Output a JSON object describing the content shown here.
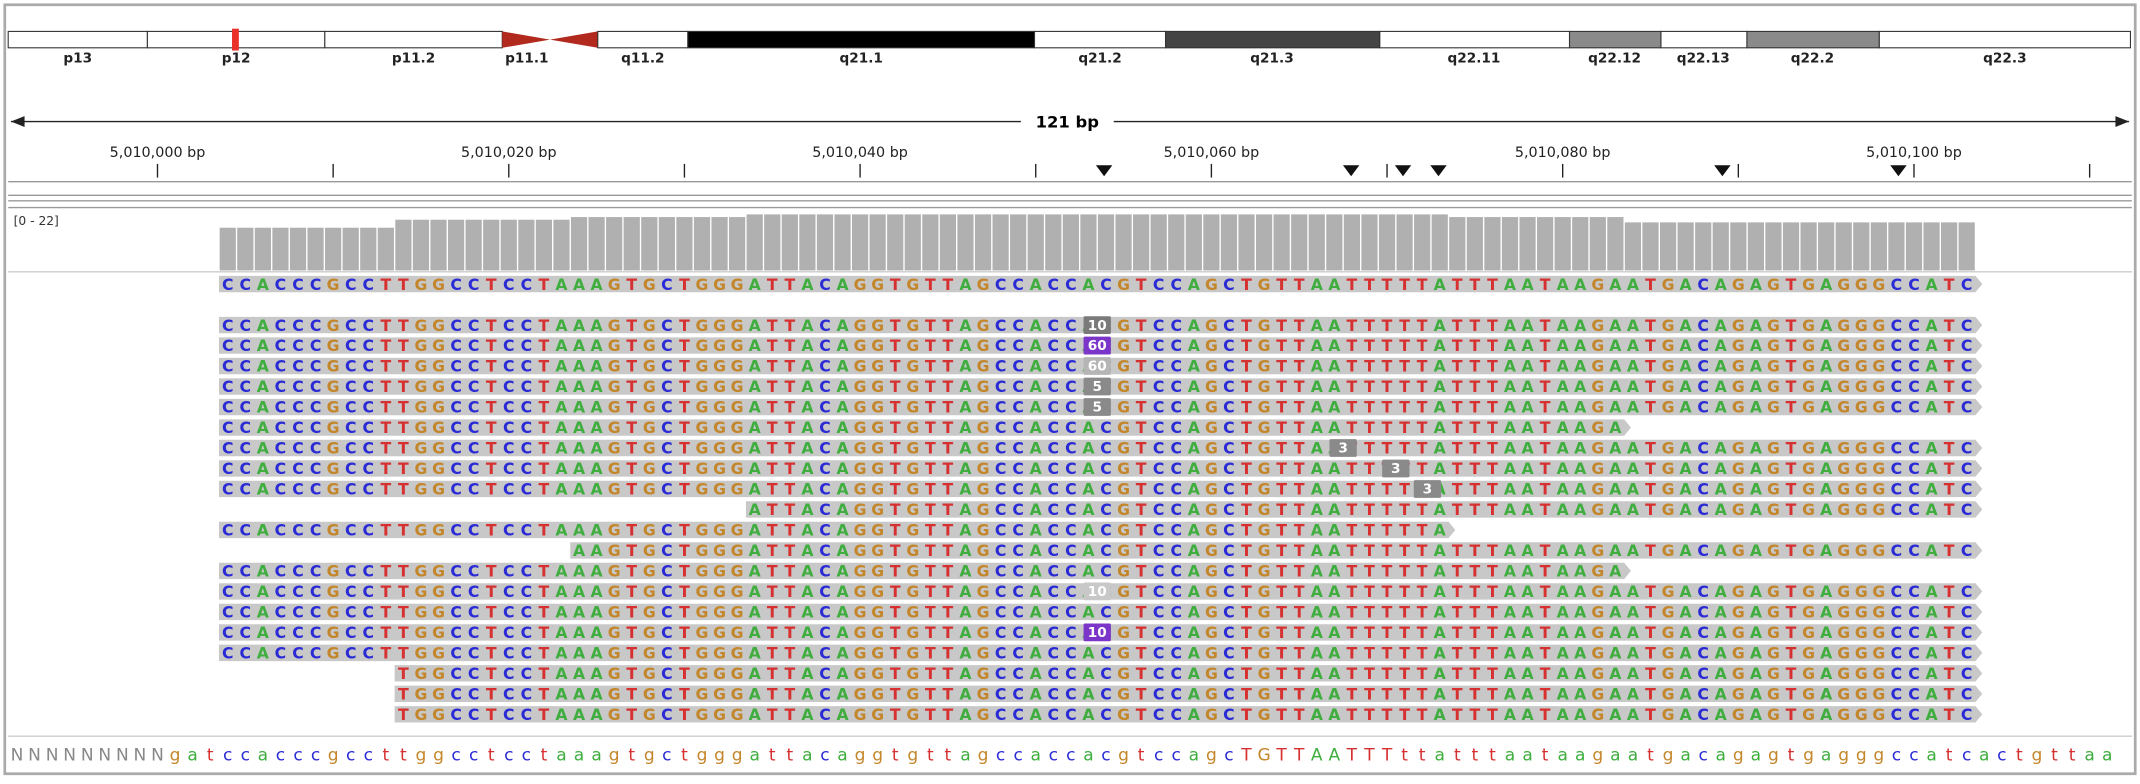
{
  "ideogram": {
    "bands": [
      "p13",
      "p12",
      "p11.2",
      "p11.1",
      "q11.2",
      "q21.1",
      "q21.2",
      "q21.3",
      "q22.11",
      "q22.12",
      "q22.13",
      "q22.2",
      "q22.3"
    ]
  },
  "ruler": {
    "span": "121 bp",
    "tick_labels": [
      "5,010,000 bp",
      "5,010,020 bp",
      "5,010,040 bp",
      "5,010,060 bp",
      "5,010,080 bp",
      "5,010,100 bp"
    ]
  },
  "coverage": {
    "range_label": "[0 - 22]",
    "ylim": [
      0,
      22
    ]
  },
  "reads": [
    {
      "sequence": "CCACCCGCCTTGGCCTCCTAAAGTGCTGGGATTACAGGTGTTAGCCACCACGTCCAGCTGTTAATTTTTATTTAATAAGAATGACAGAGTGAGGGCCATC"
    },
    {
      "sequence": "CCACCCGCCTTGGCCTCCTAAAGTGCTGGGATTACAGGTGTTAGCCACCACGTCCAGCTGTTAATTTTTATTTAATAAGAATGACAGAGTGAGGGCCATC",
      "insertion": "10",
      "insertion_color": "#7a7a7a"
    },
    {
      "sequence": "CCACCCGCCTTGGCCTCCTAAAGTGCTGGGATTACAGGTGTTAGCCACCACGTCCAGCTGTTAATTTTTATTTAATAAGAATGACAGAGTGAGGGCCATC",
      "insertion": "60",
      "insertion_color": "#7b35c8"
    },
    {
      "sequence": "CCACCCGCCTTGGCCTCCTAAAGTGCTGGGATTACAGGTGTTAGCCACCACGTCCAGCTGTTAATTTTTATTTAATAAGAATGACAGAGTGAGGGCCATC",
      "insertion": "60",
      "insertion_color": "#b5b5b5"
    },
    {
      "sequence": "CCACCCGCCTTGGCCTCCTAAAGTGCTGGGATTACAGGTGTTAGCCACCACGTCCAGCTGTTAATTTTTATTTAATAAGAATGACAGAGTGAGGGCCATC",
      "insertion": "5",
      "insertion_color": "#8a8a8a"
    },
    {
      "sequence": "CCACCCGCCTTGGCCTCCTAAAGTGCTGGGATTACAGGTGTTAGCCACCACGTCCAGCTGTTAATTTTTATTTAATAAGAATGACAGAGTGAGGGCCATC",
      "insertion": "5",
      "insertion_color": "#8a8a8a"
    },
    {
      "sequence": "CCACCCGCCTTGGCCTCCTAAAGTGCTGGGATTACAGGTGTTAGCCACCACGTCCAGCTGTTAATTTTTATTTAATAAGA"
    },
    {
      "sequence": "CCACCCGCCTTGGCCTCCTAAAGTGCTGGGATTACAGGTGTTAGCCACCACGTCCAGCTGTTAATTTTTATTTAATAAGAATGACAGAGTGAGGGCCATC",
      "insertion": "3",
      "insertion_color": "#8a8a8a"
    },
    {
      "sequence": "CCACCCGCCTTGGCCTCCTAAAGTGCTGGGATTACAGGTGTTAGCCACCACGTCCAGCTGTTAATTTTTATTTAATAAGAATGACAGAGTGAGGGCCATC",
      "insertion": "3",
      "insertion_color": "#8a8a8a"
    },
    {
      "sequence": "CCACCCGCCTTGGCCTCCTAAAGTGCTGGGATTACAGGTGTTAGCCACCACGTCCAGCTGTTAATTTTTATTTAATAAGAATGACAGAGTGAGGGCCATC",
      "insertion": "3",
      "insertion_color": "#8a8a8a"
    },
    {
      "sequence": "ATTACAGGTGTTAGCCACCACGTCCAGCTGTTAATTTTTATTTAATAAGAATGACAGAGTGAGGGCCATC"
    },
    {
      "sequence": "CCACCCGCCTTGGCCTCCTAAAGTGCTGGGATTACAGGTGTTAGCCACCACGTCCAGCTGTTAATTTTTA"
    },
    {
      "sequence": "AAGTGCTGGGATTACAGGTGTTAGCCACCACGTCCAGCTGTTAATTTTTATTTAATAAGAATGACAGAGTGAGGGCCATC"
    },
    {
      "sequence": "CCACCCGCCTTGGCCTCCTAAAGTGCTGGGATTACAGGTGTTAGCCACCACGTCCAGCTGTTAATTTTTATTTAATAAGA"
    },
    {
      "sequence": "CCACCCGCCTTGGCCTCCTAAAGTGCTGGGATTACAGGTGTTAGCCACCACGTCCAGCTGTTAATTTTTATTTAATAAGAATGACAGAGTGAGGGCCATC",
      "insertion": "10",
      "insertion_color": "#c8c8c8"
    },
    {
      "sequence": "CCACCCGCCTTGGCCTCCTAAAGTGCTGGGATTACAGGTGTTAGCCACCACGTCCAGCTGTTAATTTTTATTTAATAAGAATGACAGAGTGAGGGCCATC"
    },
    {
      "sequence": "CCACCCGCCTTGGCCTCCTAAAGTGCTGGGATTACAGGTGTTAGCCACCACGTCCAGCTGTTAATTTTTATTTAATAAGAATGACAGAGTGAGGGCCATC",
      "insertion": "10",
      "insertion_color": "#7b35c8"
    },
    {
      "sequence": "CCACCCGCCTTGGCCTCCTAAAGTGCTGGGATTACAGGTGTTAGCCACCACGTCCAGCTGTTAATTTTTATTTAATAAGAATGACAGAGTGAGGGCCATC"
    },
    {
      "sequence": "TGGCCTCCTAAAGTGCTGGGATTACAGGTGTTAGCCACCACGTCCAGCTGTTAATTTTTATTTAATAAGAATGACAGAGTGAGGGCCATC"
    },
    {
      "sequence": "TGGCCTCCTAAAGTGCTGGGATTACAGGTGTTAGCCACCACGTCCAGCTGTTAATTTTTATTTAATAAGAATGACAGAGTGAGGGCCATC"
    },
    {
      "sequence": "TGGCCTCCTAAAGTGCTGGGATTACAGGTGTTAGCCACCACGTCCAGCTGTTAATTTTTATTTAATAAGAATGACAGAGTGAGGGCCATC"
    }
  ],
  "reference": "NNNNNNNNNgatccacccgccttggcctcctaaagtgctgggattacaggtgttagccaccacgtccagcTGTTAATTTttatttaataagaatgacagagtgagggccatcactgttaa"
}
